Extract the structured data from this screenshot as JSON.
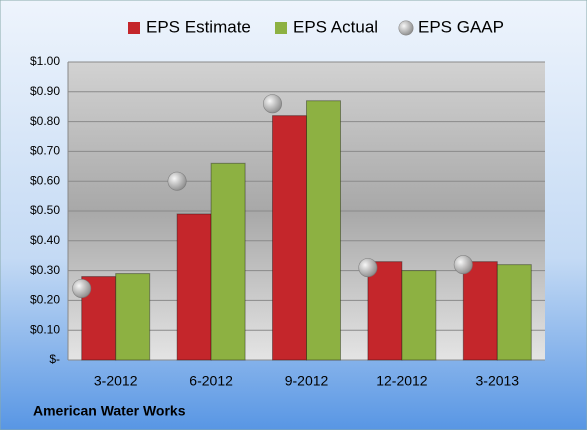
{
  "chart_data": {
    "type": "bar",
    "categories": [
      "3-2012",
      "6-2012",
      "9-2012",
      "12-2012",
      "3-2013"
    ],
    "series": [
      {
        "name": "EPS Estimate",
        "color": "#c4262b",
        "values": [
          0.28,
          0.49,
          0.82,
          0.33,
          0.33
        ]
      },
      {
        "name": "EPS Actual",
        "color": "#8db142",
        "values": [
          0.29,
          0.66,
          0.87,
          0.3,
          0.32
        ]
      },
      {
        "name": "EPS GAAP",
        "color": "#b4b4b4",
        "type": "scatter",
        "values": [
          0.24,
          0.6,
          0.86,
          0.31,
          0.32
        ]
      }
    ],
    "ylim": [
      0,
      1
    ],
    "yticks": [
      {
        "value": 0,
        "label": "$-"
      },
      {
        "value": 0.1,
        "label": "$0.10"
      },
      {
        "value": 0.2,
        "label": "$0.20"
      },
      {
        "value": 0.3,
        "label": "$0.30"
      },
      {
        "value": 0.4,
        "label": "$0.40"
      },
      {
        "value": 0.5,
        "label": "$0.50"
      },
      {
        "value": 0.6,
        "label": "$0.60"
      },
      {
        "value": 0.7,
        "label": "$0.70"
      },
      {
        "value": 0.8,
        "label": "$0.80"
      },
      {
        "value": 0.9,
        "label": "$0.90"
      },
      {
        "value": 1,
        "label": "$1.00"
      }
    ],
    "grid": true,
    "legend": "top",
    "footer": "American Water Works"
  }
}
